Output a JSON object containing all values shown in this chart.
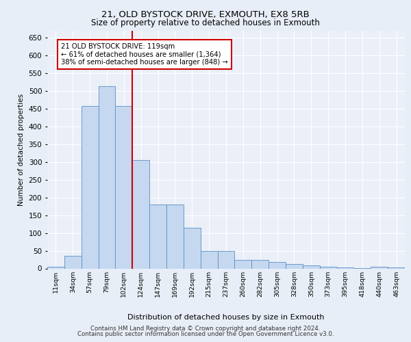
{
  "title1": "21, OLD BYSTOCK DRIVE, EXMOUTH, EX8 5RB",
  "title2": "Size of property relative to detached houses in Exmouth",
  "xlabel": "Distribution of detached houses by size in Exmouth",
  "ylabel": "Number of detached properties",
  "categories": [
    "11sqm",
    "34sqm",
    "57sqm",
    "79sqm",
    "102sqm",
    "124sqm",
    "147sqm",
    "169sqm",
    "192sqm",
    "215sqm",
    "237sqm",
    "260sqm",
    "282sqm",
    "305sqm",
    "328sqm",
    "350sqm",
    "373sqm",
    "395sqm",
    "418sqm",
    "440sqm",
    "463sqm"
  ],
  "values": [
    5,
    35,
    457,
    513,
    457,
    305,
    180,
    180,
    115,
    50,
    50,
    25,
    25,
    18,
    12,
    8,
    4,
    2,
    1,
    5,
    2
  ],
  "bar_color": "#c5d8f0",
  "bar_edge_color": "#5a8fc4",
  "vline_color": "#cc0000",
  "vline_idx": 5,
  "annotation_text": "21 OLD BYSTOCK DRIVE: 119sqm\n← 61% of detached houses are smaller (1,364)\n38% of semi-detached houses are larger (848) →",
  "annotation_box_color": "#ffffff",
  "annotation_box_edge": "#cc0000",
  "ylim": [
    0,
    670
  ],
  "yticks": [
    0,
    50,
    100,
    150,
    200,
    250,
    300,
    350,
    400,
    450,
    500,
    550,
    600,
    650
  ],
  "bg_color": "#e8eef7",
  "plot_bg_color": "#eaeff8",
  "footer1": "Contains HM Land Registry data © Crown copyright and database right 2024.",
  "footer2": "Contains public sector information licensed under the Open Government Licence v3.0."
}
